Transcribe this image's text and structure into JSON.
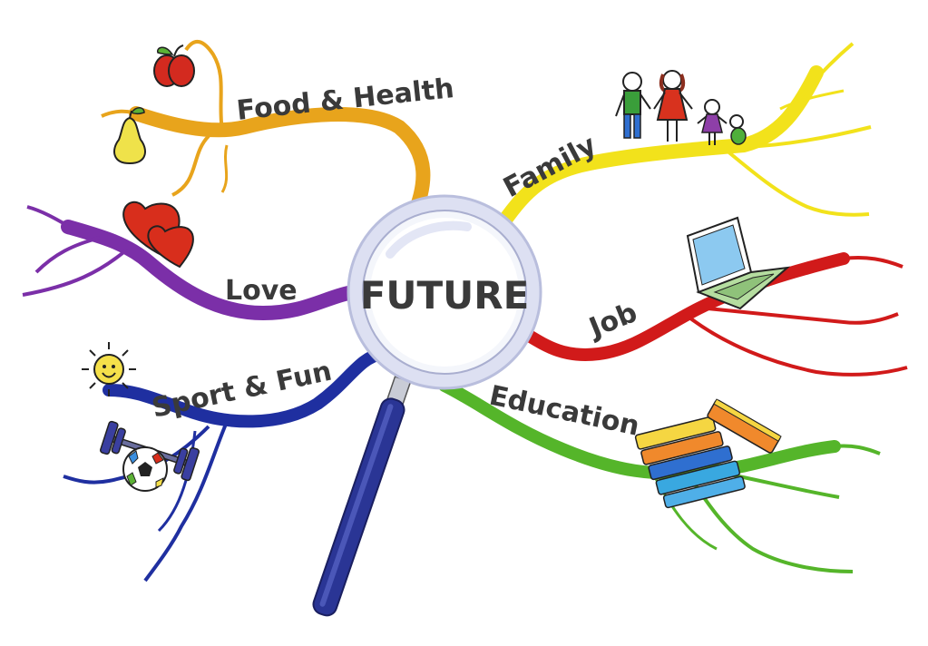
{
  "center": {
    "label": "FUTURE"
  },
  "branches": [
    {
      "id": "food-health",
      "label": "Food & Health",
      "color": "#E8A41C"
    },
    {
      "id": "love",
      "label": "Love",
      "color": "#7B2FA8"
    },
    {
      "id": "sport-fun",
      "label": "Sport & Fun",
      "color": "#1F2FA0"
    },
    {
      "id": "family",
      "label": "Family",
      "color": "#F2E21B"
    },
    {
      "id": "job",
      "label": "Job",
      "color": "#D11A1A"
    },
    {
      "id": "education",
      "label": "Education",
      "color": "#55B52A"
    }
  ],
  "icons": [
    "apple-icon",
    "pear-icon",
    "hearts-icon",
    "sun-icon",
    "dumbbell-icon",
    "soccer-ball-icon",
    "family-icon",
    "laptop-icon",
    "books-icon",
    "magnifying-glass-icon"
  ]
}
